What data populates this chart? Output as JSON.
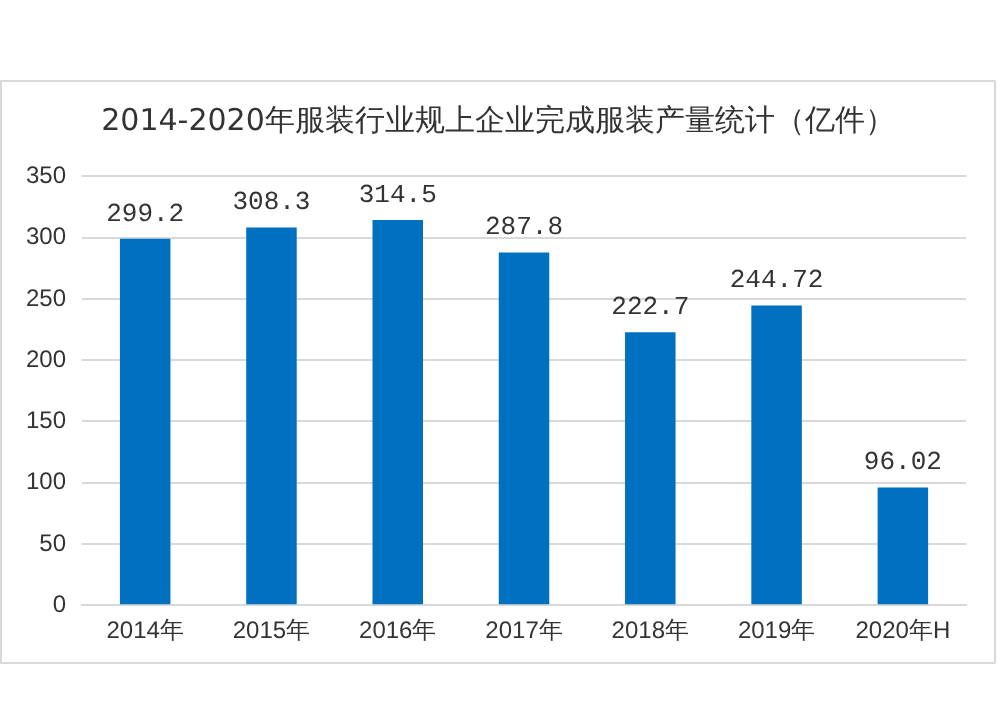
{
  "chart_data": {
    "type": "bar",
    "title": "2014-2020年服装行业规上企业完成服装产量统计（亿件）",
    "categories": [
      "2014年",
      "2015年",
      "2016年",
      "2017年",
      "2018年",
      "2019年",
      "2020年H"
    ],
    "values": [
      299.2,
      308.3,
      314.5,
      287.8,
      222.7,
      244.72,
      96.02
    ],
    "color": "#0070c0",
    "ylim": [
      0,
      350
    ],
    "yticks": [
      0,
      50,
      100,
      150,
      200,
      250,
      300,
      350
    ],
    "grid": "y",
    "data_labels": true
  }
}
